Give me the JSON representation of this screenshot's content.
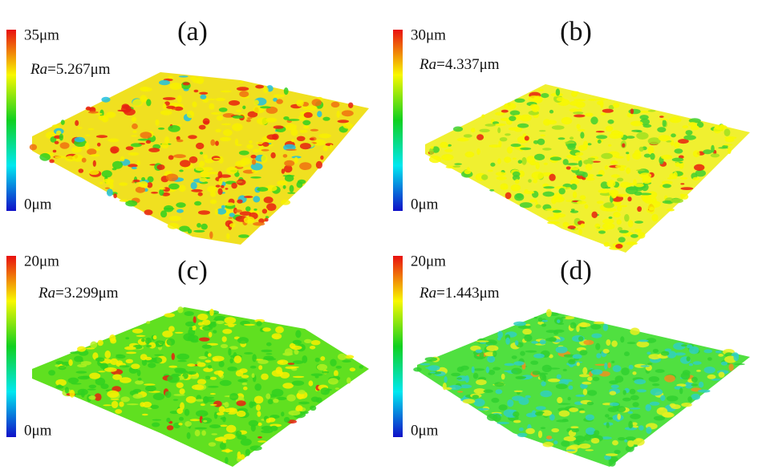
{
  "panels": [
    {
      "label": "(a)",
      "scale_max": "35μm",
      "scale_min": "0μm",
      "ra_symbol": "Ra",
      "ra_value": "=5.267μm"
    },
    {
      "label": "(b)",
      "scale_max": "30μm",
      "scale_min": "0μm",
      "ra_symbol": "Ra",
      "ra_value": "=4.337μm"
    },
    {
      "label": "(c)",
      "scale_max": "20μm",
      "scale_min": "0μm",
      "ra_symbol": "Ra",
      "ra_value": "=3.299μm"
    },
    {
      "label": "(d)",
      "scale_max": "20μm",
      "scale_min": "0μm",
      "ra_symbol": "Ra",
      "ra_value": "=1.443μm"
    }
  ]
}
